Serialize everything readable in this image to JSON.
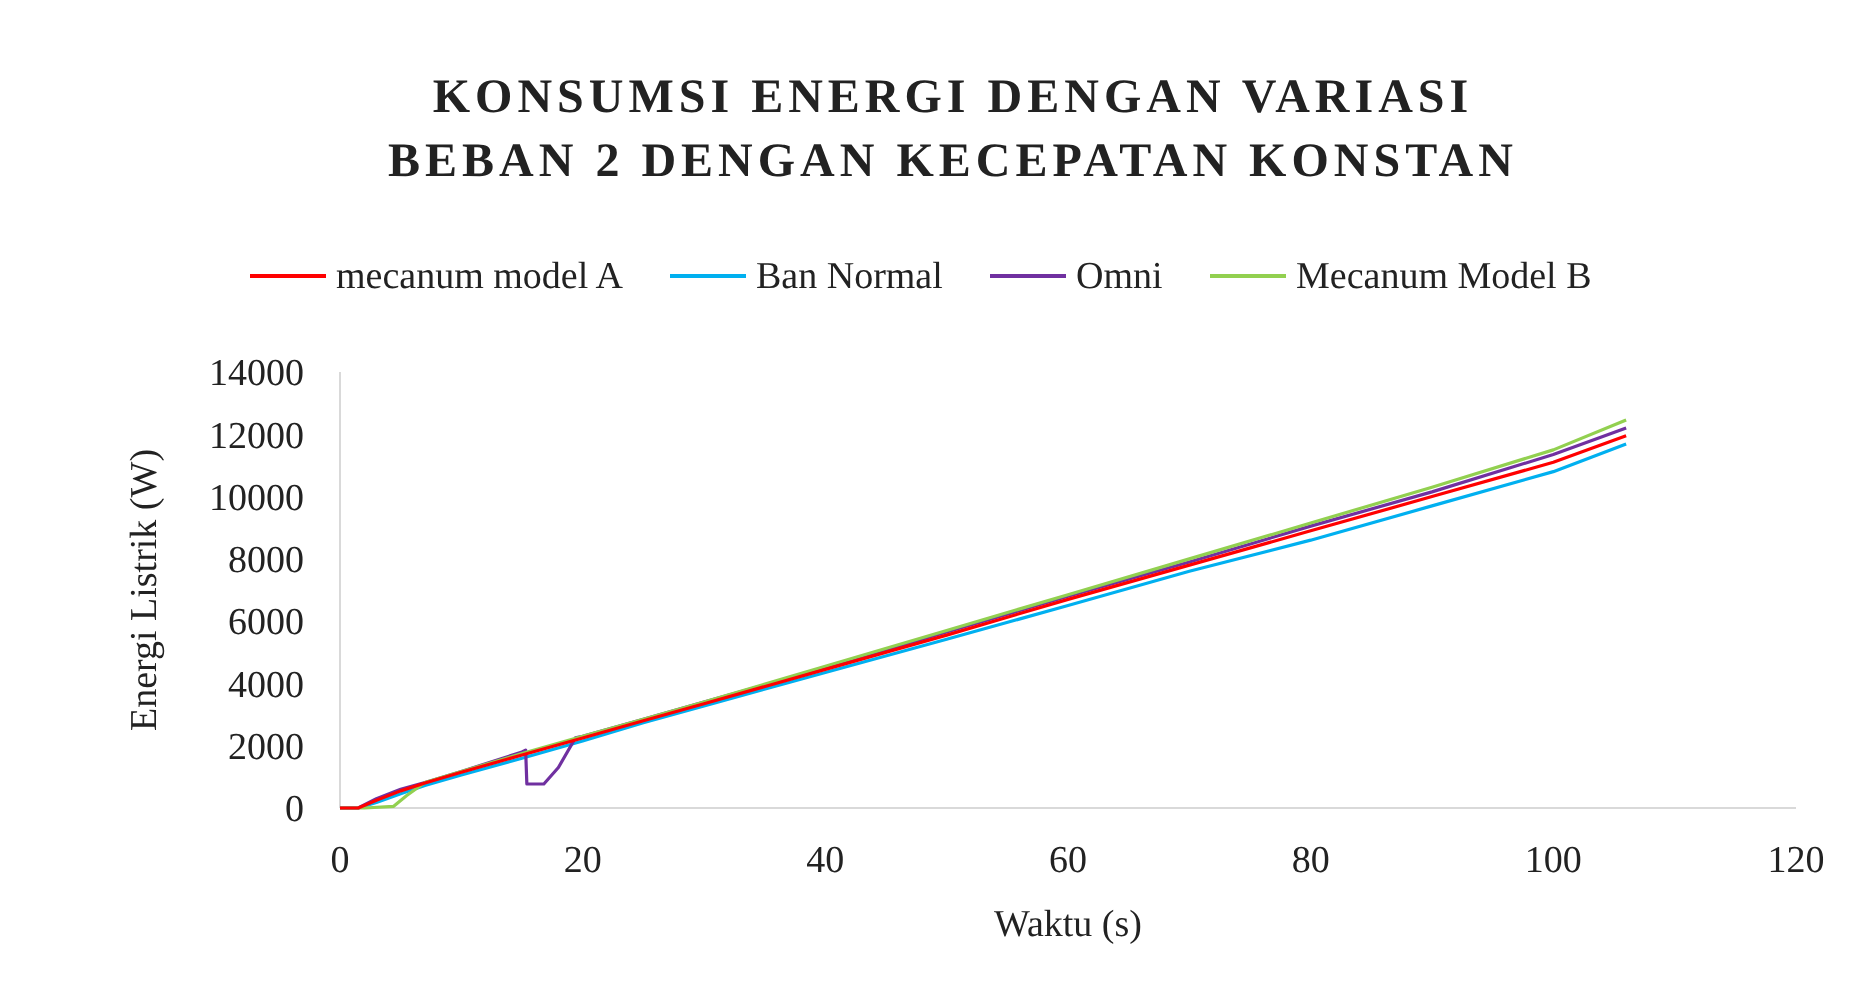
{
  "chart_data": {
    "type": "line",
    "title": "KONSUMSI ENERGI DENGAN VARIASI\nBEBAN 2 DENGAN KECEPATAN KONSTAN",
    "xlabel": "Waktu (s)",
    "ylabel": "Energi Listrik (W)",
    "xlim": [
      0,
      120
    ],
    "xticks": [
      0,
      20,
      40,
      60,
      80,
      100,
      120
    ],
    "ylim": [
      0,
      14000
    ],
    "yticks": [
      0,
      2000,
      4000,
      6000,
      8000,
      10000,
      12000,
      14000
    ],
    "grid": false,
    "legend": "top",
    "marker": "none",
    "line_style": "solid",
    "series": [
      {
        "name": "mecanum model A",
        "color": "#ff0000",
        "x": [
          0,
          1.5,
          3,
          5,
          7,
          10,
          15,
          20,
          25,
          30,
          40,
          50,
          60,
          70,
          80,
          90,
          100,
          106
        ],
        "values": [
          0,
          0,
          250,
          550,
          800,
          1150,
          1700,
          2250,
          2800,
          3350,
          4450,
          5550,
          6700,
          7800,
          8900,
          10000,
          11100,
          11950
        ]
      },
      {
        "name": "Ban Normal",
        "color": "#00b0f0",
        "x": [
          0,
          1.5,
          3,
          5,
          7,
          10,
          15,
          20,
          25,
          30,
          40,
          50,
          60,
          70,
          80,
          90,
          100,
          106
        ],
        "values": [
          0,
          0,
          180,
          460,
          720,
          1060,
          1600,
          2150,
          2740,
          3280,
          4350,
          5420,
          6500,
          7600,
          8600,
          9700,
          10800,
          11690
        ]
      },
      {
        "name": "Omni",
        "color": "#7030a0",
        "x": [
          0,
          1.5,
          3,
          5,
          7,
          10,
          15,
          15.3,
          15.4,
          16.8,
          18,
          19.4,
          20,
          25,
          30,
          40,
          50,
          60,
          70,
          80,
          90,
          100,
          106
        ],
        "values": [
          0,
          0,
          300,
          600,
          820,
          1170,
          1800,
          1860,
          770,
          770,
          1300,
          2250,
          2300,
          2850,
          3400,
          4500,
          5650,
          6800,
          7900,
          9050,
          10150,
          11350,
          12200
        ]
      },
      {
        "name": "Mecanum Model B",
        "color": "#92d050",
        "x": [
          0,
          2,
          4.4,
          5.5,
          7,
          10,
          15,
          20,
          25,
          30,
          40,
          50,
          60,
          70,
          80,
          90,
          100,
          106
        ],
        "values": [
          0,
          0,
          50,
          400,
          820,
          1170,
          1750,
          2300,
          2850,
          3400,
          4550,
          5700,
          6850,
          8000,
          9150,
          10300,
          11500,
          12460
        ]
      }
    ]
  }
}
